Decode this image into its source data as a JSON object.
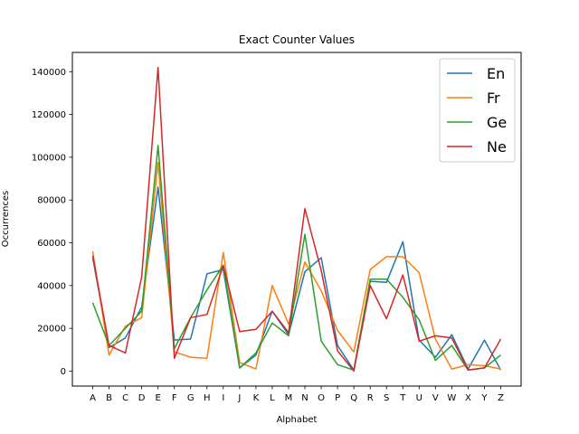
{
  "chart_data": {
    "type": "line",
    "title": "Exact Counter Values",
    "xlabel": "Alphabet",
    "ylabel": "Occurrences",
    "categories": [
      "A",
      "B",
      "C",
      "D",
      "E",
      "F",
      "G",
      "H",
      "I",
      "J",
      "K",
      "L",
      "M",
      "N",
      "O",
      "P",
      "Q",
      "R",
      "S",
      "T",
      "U",
      "V",
      "W",
      "X",
      "Y",
      "Z"
    ],
    "y_ticks": [
      0,
      20000,
      40000,
      60000,
      80000,
      100000,
      120000,
      140000
    ],
    "y_tick_labels": [
      "0",
      "20000",
      "40000",
      "60000",
      "80000",
      "100000",
      "120000",
      "140000"
    ],
    "ylim": [
      -7000,
      149000
    ],
    "grid": false,
    "legend_position": "top-right",
    "series": [
      {
        "name": "En",
        "color": "#1f77b4",
        "values": [
          53000,
          11000,
          15500,
          30000,
          86000,
          14500,
          15000,
          45500,
          47500,
          1500,
          7500,
          28000,
          17000,
          46500,
          53000,
          12000,
          500,
          42000,
          41500,
          60500,
          14500,
          6500,
          17000,
          1000,
          14500,
          500
        ]
      },
      {
        "name": "Fr",
        "color": "#ff7f0e",
        "values": [
          56000,
          7500,
          21000,
          25000,
          97500,
          9000,
          6500,
          6000,
          55500,
          4000,
          1000,
          40000,
          22000,
          51000,
          37500,
          19000,
          9000,
          47500,
          53500,
          53500,
          46000,
          15000,
          1000,
          3000,
          2500,
          1000
        ]
      },
      {
        "name": "Ge",
        "color": "#2ca02c",
        "values": [
          32000,
          12000,
          20000,
          28000,
          105500,
          10500,
          25000,
          38000,
          49500,
          1500,
          8500,
          22500,
          16500,
          64000,
          14000,
          3000,
          500,
          43000,
          43000,
          34500,
          24000,
          5000,
          12000,
          500,
          1500,
          7500
        ]
      },
      {
        "name": "Ne",
        "color": "#d62728",
        "values": [
          54000,
          12000,
          8500,
          44000,
          142000,
          6000,
          25000,
          26500,
          49500,
          18500,
          19500,
          28000,
          18000,
          76000,
          47000,
          9500,
          0,
          40000,
          24500,
          45000,
          14000,
          16500,
          15500,
          500,
          1500,
          15000
        ]
      }
    ]
  }
}
